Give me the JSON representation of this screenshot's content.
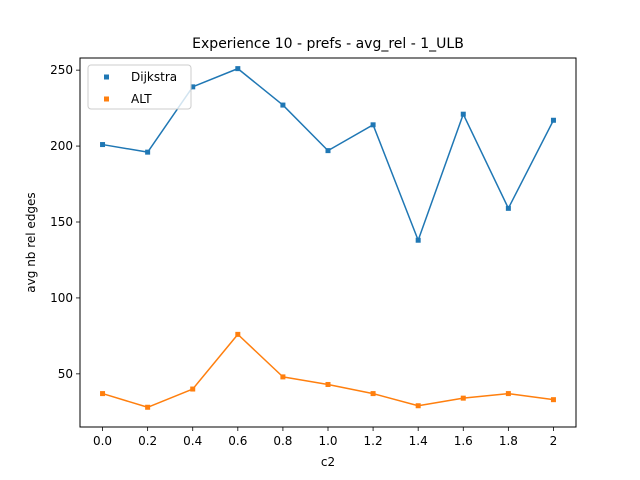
{
  "chart_data": {
    "type": "line",
    "title": "Experience 10 - prefs - avg_rel - 1_ULB",
    "xlabel": "c2",
    "ylabel": "avg nb rel edges",
    "x": [
      0.0,
      0.2,
      0.4,
      0.6,
      0.8,
      1.0,
      1.2,
      1.4,
      1.6,
      1.8,
      2.0
    ],
    "x_tick_labels": [
      "0.0",
      "0.2",
      "0.4",
      "0.6",
      "0.8",
      "1.0",
      "1.2",
      "1.4",
      "1.6",
      "1.8",
      "2"
    ],
    "y_ticks": [
      50,
      100,
      150,
      200,
      250
    ],
    "xlim": [
      -0.1,
      2.1
    ],
    "ylim": [
      15,
      258
    ],
    "grid": false,
    "legend_position": "top-left",
    "series": [
      {
        "name": "Dijkstra",
        "color": "#1f77b4",
        "marker": "square",
        "values": [
          201,
          196,
          239,
          251,
          227,
          197,
          214,
          138,
          221,
          159,
          217
        ]
      },
      {
        "name": "ALT",
        "color": "#ff7f0e",
        "marker": "square",
        "values": [
          37,
          28,
          40,
          76,
          48,
          43,
          37,
          29,
          34,
          37,
          33
        ]
      }
    ]
  }
}
